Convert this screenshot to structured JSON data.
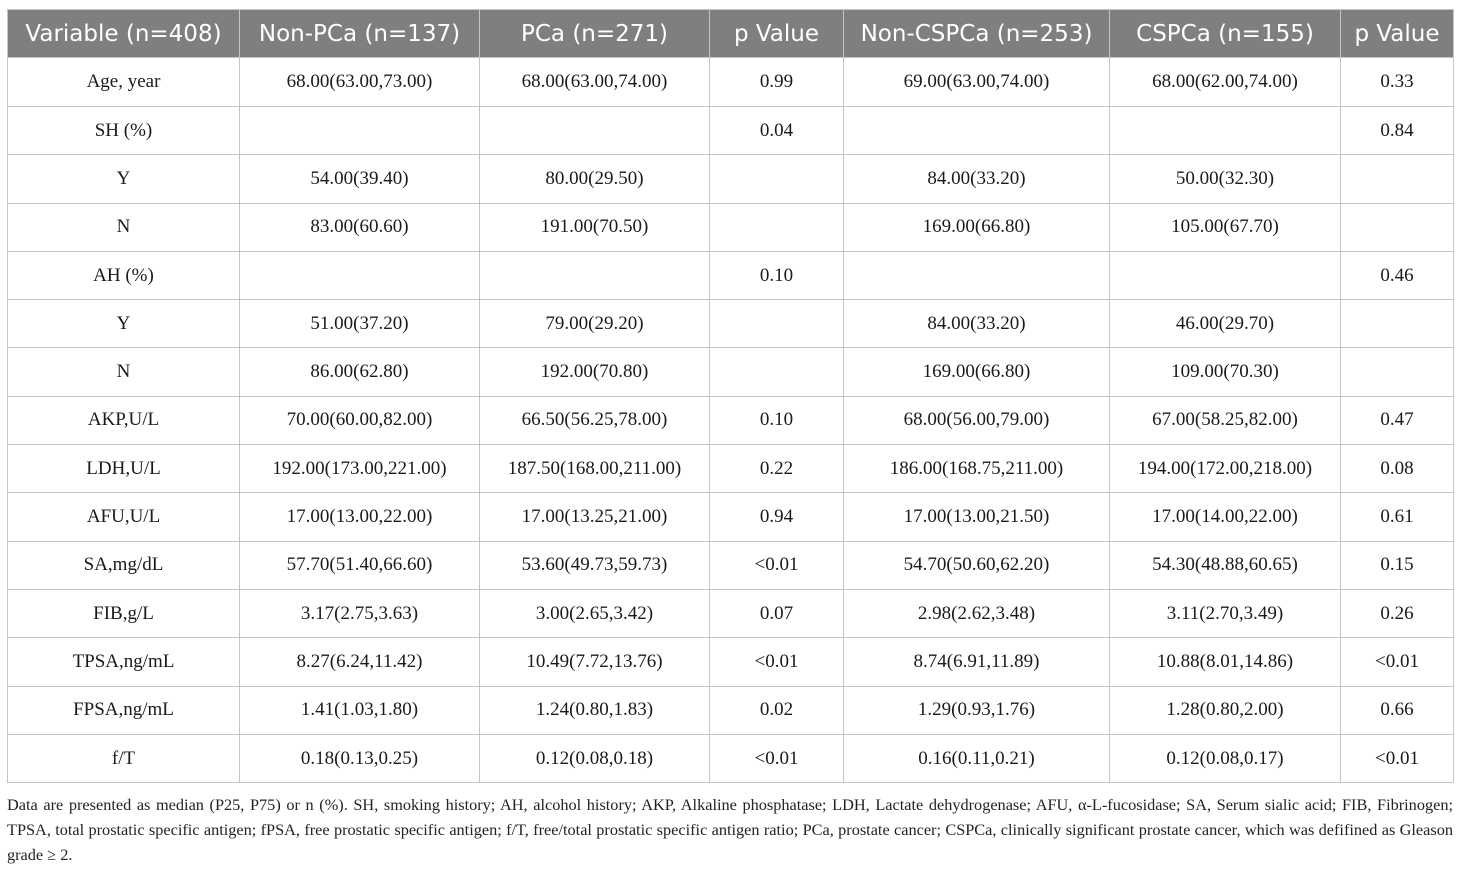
{
  "table": {
    "headers": [
      "Variable (n=408)",
      "Non-PCa (n=137)",
      "PCa (n=271)",
      "p Value",
      "Non-CSPCa (n=253)",
      "CSPCa (n=155)",
      "p Value"
    ],
    "rows": [
      [
        "Age, year",
        "68.00(63.00,73.00)",
        "68.00(63.00,74.00)",
        "0.99",
        "69.00(63.00,74.00)",
        "68.00(62.00,74.00)",
        "0.33"
      ],
      [
        "SH (%)",
        "",
        "",
        "0.04",
        "",
        "",
        "0.84"
      ],
      [
        "Y",
        "54.00(39.40)",
        "80.00(29.50)",
        "",
        "84.00(33.20)",
        "50.00(32.30)",
        ""
      ],
      [
        "N",
        "83.00(60.60)",
        "191.00(70.50)",
        "",
        "169.00(66.80)",
        "105.00(67.70)",
        ""
      ],
      [
        "AH (%)",
        "",
        "",
        "0.10",
        "",
        "",
        "0.46"
      ],
      [
        "Y",
        "51.00(37.20)",
        "79.00(29.20)",
        "",
        "84.00(33.20)",
        "46.00(29.70)",
        ""
      ],
      [
        "N",
        "86.00(62.80)",
        "192.00(70.80)",
        "",
        "169.00(66.80)",
        "109.00(70.30)",
        ""
      ],
      [
        "AKP,U/L",
        "70.00(60.00,82.00)",
        "66.50(56.25,78.00)",
        "0.10",
        "68.00(56.00,79.00)",
        "67.00(58.25,82.00)",
        "0.47"
      ],
      [
        "LDH,U/L",
        "192.00(173.00,221.00)",
        "187.50(168.00,211.00)",
        "0.22",
        "186.00(168.75,211.00)",
        "194.00(172.00,218.00)",
        "0.08"
      ],
      [
        "AFU,U/L",
        "17.00(13.00,22.00)",
        "17.00(13.25,21.00)",
        "0.94",
        "17.00(13.00,21.50)",
        "17.00(14.00,22.00)",
        "0.61"
      ],
      [
        "SA,mg/dL",
        "57.70(51.40,66.60)",
        "53.60(49.73,59.73)",
        "<0.01",
        "54.70(50.60,62.20)",
        "54.30(48.88,60.65)",
        "0.15"
      ],
      [
        "FIB,g/L",
        "3.17(2.75,3.63)",
        "3.00(2.65,3.42)",
        "0.07",
        "2.98(2.62,3.48)",
        "3.11(2.70,3.49)",
        "0.26"
      ],
      [
        "TPSA,ng/mL",
        "8.27(6.24,11.42)",
        "10.49(7.72,13.76)",
        "<0.01",
        "8.74(6.91,11.89)",
        "10.88(8.01,14.86)",
        "<0.01"
      ],
      [
        "FPSA,ng/mL",
        "1.41(1.03,1.80)",
        "1.24(0.80,1.83)",
        "0.02",
        "1.29(0.93,1.76)",
        "1.28(0.80,2.00)",
        "0.66"
      ],
      [
        "f/T",
        "0.18(0.13,0.25)",
        "0.12(0.08,0.18)",
        "<0.01",
        "0.16(0.11,0.21)",
        "0.12(0.08,0.17)",
        "<0.01"
      ]
    ]
  },
  "footnote": "Data are presented as median (P25, P75) or n (%). SH, smoking history; AH, alcohol history; AKP, Alkaline phosphatase; LDH, Lactate dehydrogenase; AFU, α-L-fucosidase; SA, Serum sialic acid; FIB, Fibrinogen; TPSA, total prostatic specific antigen; fPSA, free prostatic specific antigen; f/T, free/total prostatic specific antigen ratio; PCa, prostate cancer; CSPCa, clinically significant prostate cancer, which was defifined as Gleason grade ≥ 2.",
  "colors": {
    "header_bg": "#7f7f7f",
    "header_text": "#ffffff",
    "border": "#c4c4c4"
  }
}
